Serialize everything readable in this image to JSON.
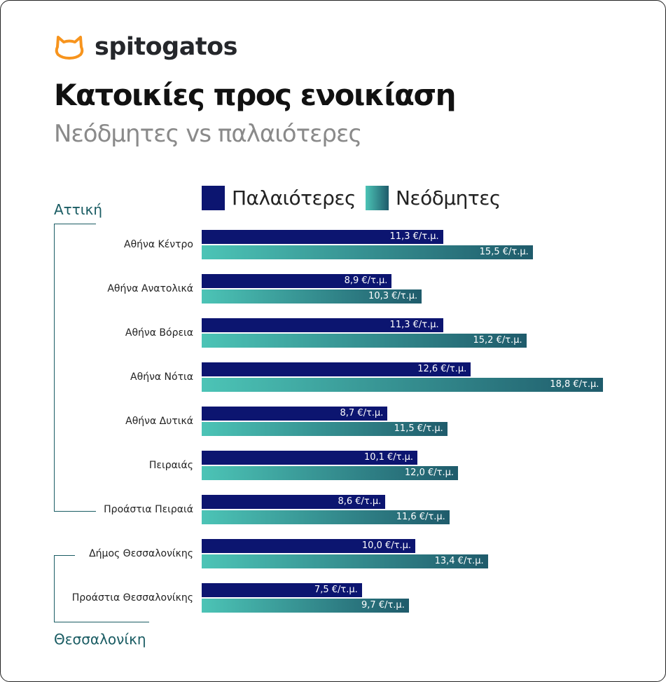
{
  "brand": {
    "name": "spitogatos",
    "logo_color": "#f7941d"
  },
  "title": "Κατοικίες προς ενοικίαση",
  "subtitle": "Νεόδμητες vs παλαιότερες",
  "chart_data": {
    "type": "bar",
    "orientation": "horizontal",
    "unit": "€/τ.μ.",
    "categories": [
      "Αθήνα Κέντρο",
      "Αθήνα Ανατολικά",
      "Αθήνα Βόρεια",
      "Αθήνα Νότια",
      "Αθήνα Δυτικά",
      "Πειραιάς",
      "Προάστια Πειραιά",
      "Δήμος Θεσσαλονίκης",
      "Προάστια Θεσσαλονίκης"
    ],
    "groups": [
      {
        "name": "Αττική",
        "categories": [
          0,
          1,
          2,
          3,
          4,
          5,
          6
        ]
      },
      {
        "name": "Θεσσαλονίκη",
        "categories": [
          7,
          8
        ]
      }
    ],
    "series": [
      {
        "name": "Παλαιότερες",
        "color": "#0c1570",
        "values": [
          11.3,
          8.9,
          11.3,
          12.6,
          8.7,
          10.1,
          8.6,
          10.0,
          7.5
        ],
        "labels": [
          "11,3 €/τ.μ.",
          "8,9 €/τ.μ.",
          "11,3 €/τ.μ.",
          "12,6 €/τ.μ.",
          "8,7 €/τ.μ.",
          "10,1 €/τ.μ.",
          "8,6 €/τ.μ.",
          "10,0 €/τ.μ.",
          "7,5 €/τ.μ."
        ]
      },
      {
        "name": "Νεόδμητες",
        "color": "#4cc4b6",
        "color_end": "#1f5b6b",
        "values": [
          15.5,
          10.3,
          15.2,
          18.8,
          11.5,
          12.0,
          11.6,
          13.4,
          9.7
        ],
        "labels": [
          "15,5 €/τ.μ.",
          "10,3 €/τ.μ.",
          "15,2 €/τ.μ.",
          "18,8 €/τ.μ.",
          "11,5 €/τ.μ.",
          "12,0 €/τ.μ.",
          "11,6 €/τ.μ.",
          "13,4 €/τ.μ.",
          "9,7 €/τ.μ."
        ]
      }
    ],
    "legend": "top",
    "grid": false
  }
}
